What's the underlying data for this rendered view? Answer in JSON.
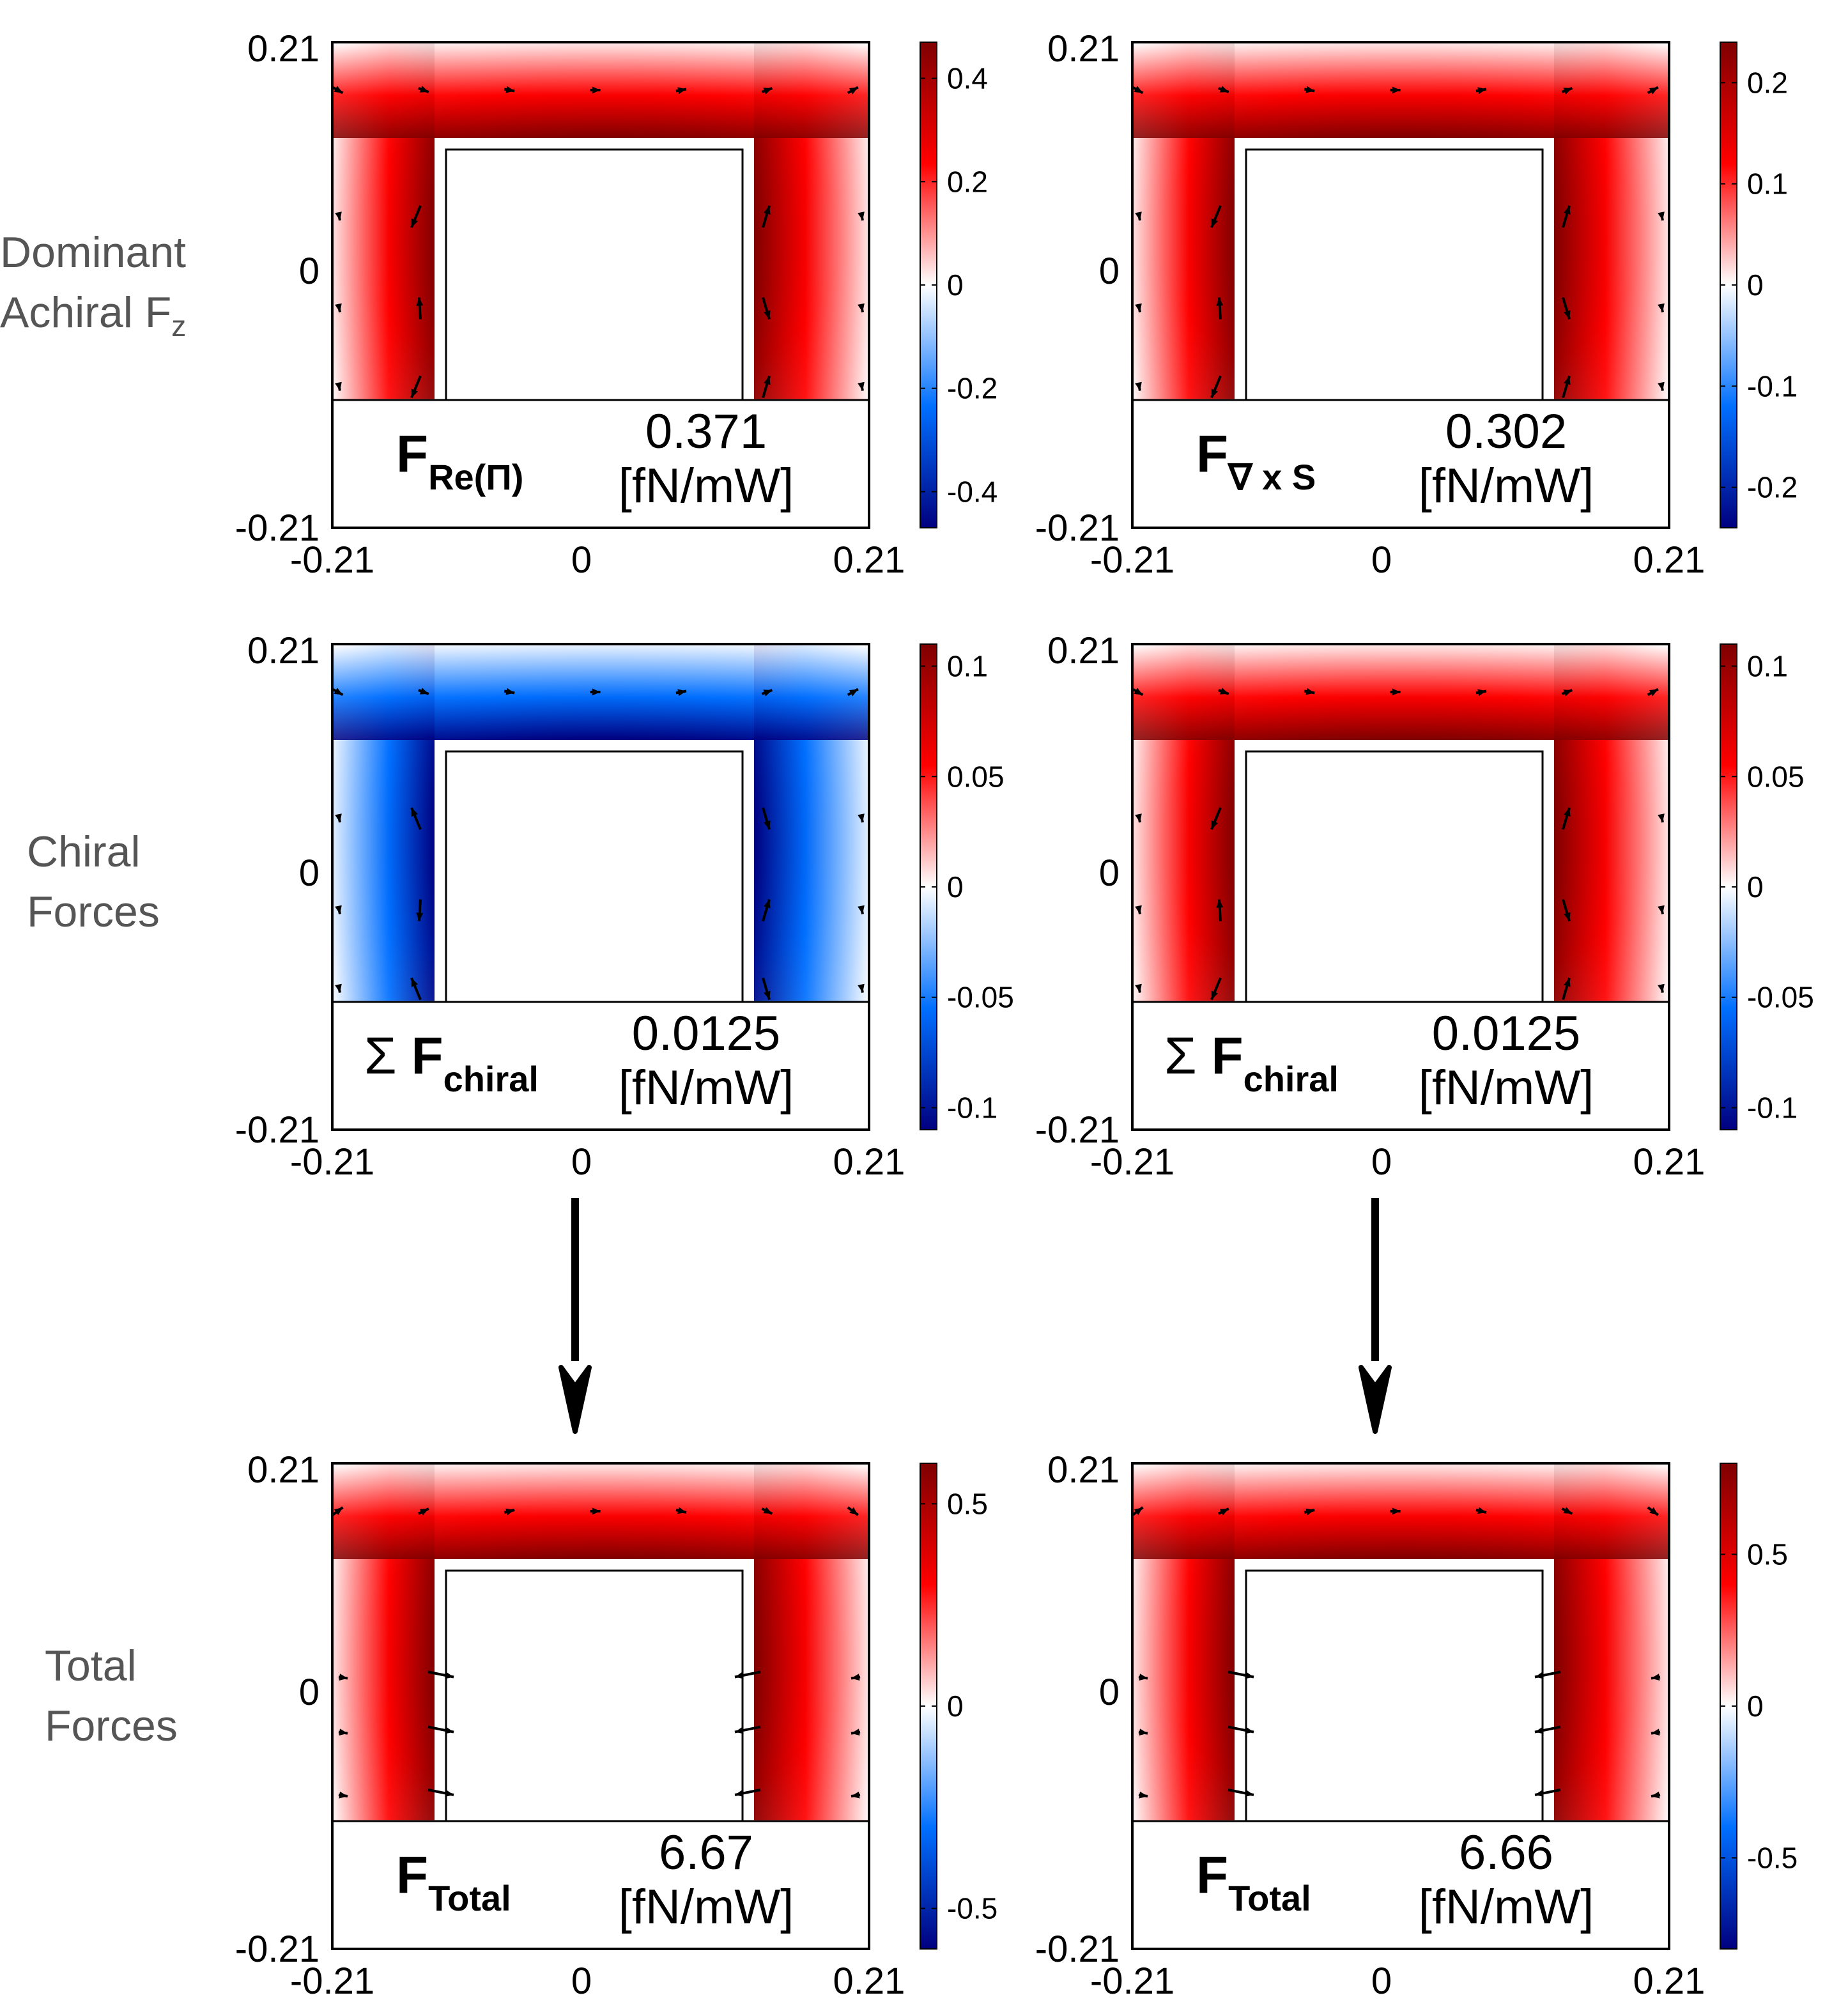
{
  "rows": [
    {
      "label": [
        "Dominant",
        "Achiral F"
      ],
      "label_sub": "z"
    },
    {
      "label": [
        "Chiral",
        "Forces"
      ],
      "label_sub": ""
    },
    {
      "label": [
        "Total",
        "Forces"
      ],
      "label_sub": ""
    }
  ],
  "colors": {
    "dark_blue": "#00007f",
    "blue": "#006fff",
    "white": "#ffffff",
    "red": "#ff0000",
    "dark_red": "#7f0000",
    "text_gray": "#555555"
  },
  "chart_data": [
    {
      "type": "heatmap",
      "row": 0,
      "col": 0,
      "xlim": [
        -0.21,
        0.21
      ],
      "ylim": [
        -0.21,
        0.21
      ],
      "x_ticks": [
        "-0.21",
        "0",
        "0.21"
      ],
      "y_ticks": [
        "0.21",
        "0",
        "-0.21"
      ],
      "clim": [
        -0.47,
        0.47
      ],
      "cbar_ticks": [
        "0.4",
        "0.2",
        "0",
        "-0.2",
        "-0.4"
      ],
      "cbar_tick_values": [
        0.4,
        0.2,
        0,
        -0.2,
        -0.4
      ],
      "field_sign": 1,
      "quiver": "arrows",
      "label_main": "F",
      "label_sub": "Re(Π)",
      "value": "0.371",
      "unit": "[fN/mW]"
    },
    {
      "type": "heatmap",
      "row": 0,
      "col": 1,
      "xlim": [
        -0.21,
        0.21
      ],
      "ylim": [
        -0.21,
        0.21
      ],
      "x_ticks": [
        "-0.21",
        "0",
        "0.21"
      ],
      "y_ticks": [
        "0.21",
        "0",
        "-0.21"
      ],
      "clim": [
        -0.24,
        0.24
      ],
      "cbar_ticks": [
        "0.2",
        "0.1",
        "0",
        "-0.1",
        "-0.2"
      ],
      "cbar_tick_values": [
        0.2,
        0.1,
        0,
        -0.1,
        -0.2
      ],
      "field_sign": 1,
      "quiver": "arrows",
      "label_main": "F",
      "label_sub": "∇ x S",
      "value": "0.302",
      "unit": "[fN/mW]"
    },
    {
      "type": "heatmap",
      "row": 1,
      "col": 0,
      "xlim": [
        -0.21,
        0.21
      ],
      "ylim": [
        -0.21,
        0.21
      ],
      "x_ticks": [
        "-0.21",
        "0",
        "0.21"
      ],
      "y_ticks": [
        "0.21",
        "0",
        "-0.21"
      ],
      "clim": [
        -0.11,
        0.11
      ],
      "cbar_ticks": [
        "0.1",
        "0.05",
        "0",
        "-0.05",
        "-0.1"
      ],
      "cbar_tick_values": [
        0.1,
        0.05,
        0,
        -0.05,
        -0.1
      ],
      "field_sign": -1,
      "quiver": "arrows",
      "label_prefix": "Σ",
      "label_main": "F",
      "label_sub": "chiral",
      "value": "0.0125",
      "unit": "[fN/mW]"
    },
    {
      "type": "heatmap",
      "row": 1,
      "col": 1,
      "xlim": [
        -0.21,
        0.21
      ],
      "ylim": [
        -0.21,
        0.21
      ],
      "x_ticks": [
        "-0.21",
        "0",
        "0.21"
      ],
      "y_ticks": [
        "0.21",
        "0",
        "-0.21"
      ],
      "clim": [
        -0.11,
        0.11
      ],
      "cbar_ticks": [
        "0.1",
        "0.05",
        "0",
        "-0.05",
        "-0.1"
      ],
      "cbar_tick_values": [
        0.1,
        0.05,
        0,
        -0.05,
        -0.1
      ],
      "field_sign": 1,
      "quiver": "arrows",
      "label_prefix": "Σ",
      "label_main": "F",
      "label_sub": "chiral",
      "value": "0.0125",
      "unit": "[fN/mW]"
    },
    {
      "type": "heatmap",
      "row": 2,
      "col": 0,
      "xlim": [
        -0.21,
        0.21
      ],
      "ylim": [
        -0.21,
        0.21
      ],
      "x_ticks": [
        "-0.21",
        "0",
        "0.21"
      ],
      "y_ticks": [
        "0.21",
        "0",
        "-0.21"
      ],
      "clim": [
        -0.6,
        0.6
      ],
      "cbar_ticks": [
        "0.5",
        "0",
        "-0.5"
      ],
      "cbar_tick_values": [
        0.5,
        0,
        -0.5
      ],
      "field_sign": 1,
      "quiver": "inward",
      "label_main": "F",
      "label_sub": "Total",
      "value": "6.67",
      "unit": "[fN/mW]"
    },
    {
      "type": "heatmap",
      "row": 2,
      "col": 1,
      "xlim": [
        -0.21,
        0.21
      ],
      "ylim": [
        -0.21,
        0.21
      ],
      "x_ticks": [
        "-0.21",
        "0",
        "0.21"
      ],
      "y_ticks": [
        "0.21",
        "0",
        "-0.21"
      ],
      "clim": [
        -0.8,
        0.8
      ],
      "cbar_ticks": [
        "0.5",
        "0",
        "-0.5"
      ],
      "cbar_tick_values": [
        0.5,
        0,
        -0.5
      ],
      "field_sign": 1,
      "quiver": "inward",
      "label_main": "F",
      "label_sub": "Total",
      "value": "6.66",
      "unit": "[fN/mW]"
    }
  ]
}
